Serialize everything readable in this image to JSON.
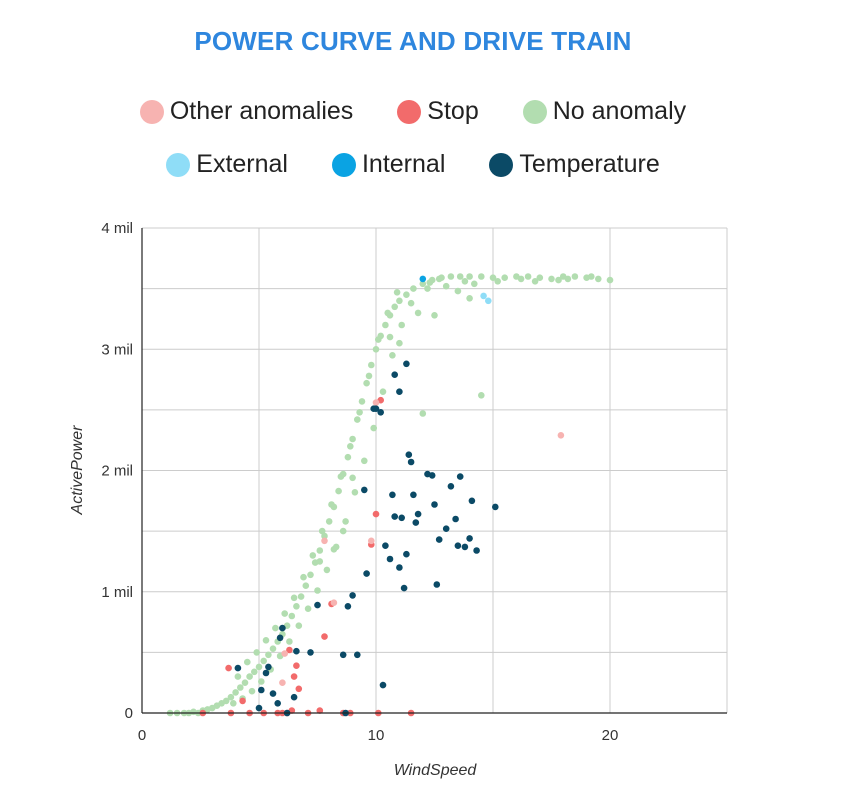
{
  "chart_data": {
    "type": "scatter",
    "title": "POWER CURVE AND DRIVE TRAIN",
    "title_color": "#2E86DE",
    "xlabel": "WindSpeed",
    "ylabel": "ActivePower",
    "xlim": [
      0,
      25
    ],
    "ylim": [
      0,
      4000000
    ],
    "x_ticks": [
      0,
      10,
      20
    ],
    "x_tick_labels": [
      "0",
      "10",
      "20"
    ],
    "y_ticks": [
      0,
      1000000,
      2000000,
      3000000,
      4000000
    ],
    "y_tick_labels": [
      "0",
      "1 mil",
      "2 mil",
      "3 mil",
      "4 mil"
    ],
    "grid": true,
    "legend_position": "top",
    "legend": [
      {
        "key": "other",
        "label": "Other anomalies",
        "color": "#F7B3B1"
      },
      {
        "key": "stop",
        "label": "Stop",
        "color": "#F26B6B"
      },
      {
        "key": "none",
        "label": "No anomaly",
        "color": "#B2DDB0"
      },
      {
        "key": "external",
        "label": "External",
        "color": "#8FDDF7"
      },
      {
        "key": "internal",
        "label": "Internal",
        "color": "#0AA3E3"
      },
      {
        "key": "temperature",
        "label": "Temperature",
        "color": "#0B4A66"
      }
    ],
    "series": [
      {
        "key": "none",
        "name": "No anomaly",
        "color": "#B2DDB0",
        "points": [
          [
            1.2,
            0
          ],
          [
            1.5,
            0
          ],
          [
            1.8,
            0
          ],
          [
            2.0,
            0
          ],
          [
            2.2,
            10000
          ],
          [
            2.4,
            0
          ],
          [
            2.6,
            20000
          ],
          [
            2.8,
            30000
          ],
          [
            3.0,
            40000
          ],
          [
            3.2,
            60000
          ],
          [
            3.4,
            80000
          ],
          [
            3.6,
            100000
          ],
          [
            3.8,
            130000
          ],
          [
            4.0,
            170000
          ],
          [
            4.2,
            210000
          ],
          [
            4.4,
            250000
          ],
          [
            4.6,
            300000
          ],
          [
            4.8,
            340000
          ],
          [
            5.0,
            380000
          ],
          [
            5.2,
            430000
          ],
          [
            5.4,
            480000
          ],
          [
            5.6,
            530000
          ],
          [
            5.8,
            590000
          ],
          [
            6.0,
            650000
          ],
          [
            6.2,
            720000
          ],
          [
            6.4,
            800000
          ],
          [
            6.6,
            880000
          ],
          [
            6.8,
            960000
          ],
          [
            7.0,
            1050000
          ],
          [
            7.2,
            1140000
          ],
          [
            7.4,
            1240000
          ],
          [
            7.6,
            1340000
          ],
          [
            7.8,
            1460000
          ],
          [
            8.0,
            1580000
          ],
          [
            8.2,
            1700000
          ],
          [
            8.4,
            1830000
          ],
          [
            8.6,
            1970000
          ],
          [
            8.8,
            2110000
          ],
          [
            9.0,
            2260000
          ],
          [
            9.2,
            2420000
          ],
          [
            9.4,
            2570000
          ],
          [
            9.6,
            2720000
          ],
          [
            9.8,
            2870000
          ],
          [
            10.0,
            3000000
          ],
          [
            10.2,
            3110000
          ],
          [
            10.4,
            3200000
          ],
          [
            10.6,
            3280000
          ],
          [
            10.8,
            3350000
          ],
          [
            11.0,
            3400000
          ],
          [
            11.3,
            3450000
          ],
          [
            11.6,
            3500000
          ],
          [
            12.0,
            3540000
          ],
          [
            12.4,
            3570000
          ],
          [
            12.8,
            3590000
          ],
          [
            13.2,
            3600000
          ],
          [
            13.6,
            3600000
          ],
          [
            14.0,
            3600000
          ],
          [
            14.5,
            3600000
          ],
          [
            15.0,
            3590000
          ],
          [
            15.5,
            3590000
          ],
          [
            16.0,
            3600000
          ],
          [
            16.5,
            3600000
          ],
          [
            17.0,
            3590000
          ],
          [
            17.5,
            3580000
          ],
          [
            18.0,
            3600000
          ],
          [
            18.5,
            3600000
          ],
          [
            19.0,
            3590000
          ],
          [
            19.5,
            3580000
          ],
          [
            20.0,
            3570000
          ],
          [
            4.1,
            300000
          ],
          [
            4.5,
            420000
          ],
          [
            4.9,
            500000
          ],
          [
            5.3,
            600000
          ],
          [
            5.7,
            700000
          ],
          [
            6.1,
            820000
          ],
          [
            6.5,
            950000
          ],
          [
            6.9,
            1120000
          ],
          [
            7.3,
            1300000
          ],
          [
            7.7,
            1500000
          ],
          [
            8.1,
            1720000
          ],
          [
            8.5,
            1950000
          ],
          [
            8.9,
            2200000
          ],
          [
            9.3,
            2480000
          ],
          [
            9.7,
            2780000
          ],
          [
            10.1,
            3080000
          ],
          [
            10.5,
            3300000
          ],
          [
            10.9,
            3470000
          ],
          [
            3.9,
            80000
          ],
          [
            4.3,
            120000
          ],
          [
            4.7,
            180000
          ],
          [
            5.1,
            260000
          ],
          [
            5.5,
            360000
          ],
          [
            5.9,
            470000
          ],
          [
            6.3,
            590000
          ],
          [
            6.7,
            720000
          ],
          [
            7.1,
            860000
          ],
          [
            7.5,
            1010000
          ],
          [
            7.9,
            1180000
          ],
          [
            8.3,
            1370000
          ],
          [
            8.7,
            1580000
          ],
          [
            9.1,
            1820000
          ],
          [
            9.5,
            2080000
          ],
          [
            9.9,
            2350000
          ],
          [
            10.3,
            2650000
          ],
          [
            10.7,
            2950000
          ],
          [
            11.1,
            3200000
          ],
          [
            12.0,
            2470000
          ],
          [
            14.5,
            2620000
          ],
          [
            11.8,
            3300000
          ],
          [
            12.5,
            3280000
          ],
          [
            13.5,
            3480000
          ],
          [
            14.0,
            3420000
          ],
          [
            13.0,
            3520000
          ],
          [
            12.2,
            3500000
          ],
          [
            11.5,
            3380000
          ],
          [
            9.0,
            1940000
          ],
          [
            8.6,
            1500000
          ],
          [
            8.2,
            1350000
          ],
          [
            7.6,
            1250000
          ],
          [
            10.6,
            3100000
          ],
          [
            11.0,
            3050000
          ],
          [
            12.3,
            3550000
          ],
          [
            12.7,
            3580000
          ],
          [
            13.8,
            3560000
          ],
          [
            14.2,
            3540000
          ],
          [
            15.2,
            3560000
          ],
          [
            16.2,
            3580000
          ],
          [
            16.8,
            3560000
          ],
          [
            17.8,
            3570000
          ],
          [
            18.2,
            3580000
          ],
          [
            19.2,
            3600000
          ]
        ]
      },
      {
        "key": "stop",
        "name": "Stop",
        "color": "#F26B6B",
        "points": [
          [
            2.6,
            0
          ],
          [
            3.7,
            370000
          ],
          [
            3.8,
            0
          ],
          [
            4.3,
            100000
          ],
          [
            4.6,
            0
          ],
          [
            5.2,
            0
          ],
          [
            5.8,
            0
          ],
          [
            6.0,
            0
          ],
          [
            6.2,
            0
          ],
          [
            6.4,
            20000
          ],
          [
            6.5,
            300000
          ],
          [
            6.6,
            390000
          ],
          [
            6.7,
            200000
          ],
          [
            7.1,
            0
          ],
          [
            7.6,
            20000
          ],
          [
            7.8,
            630000
          ],
          [
            8.1,
            900000
          ],
          [
            8.6,
            0
          ],
          [
            8.9,
            0
          ],
          [
            9.8,
            1390000
          ],
          [
            10.0,
            1640000
          ],
          [
            10.1,
            0
          ],
          [
            11.5,
            0
          ],
          [
            10.2,
            2580000
          ],
          [
            6.3,
            520000
          ]
        ]
      },
      {
        "key": "other",
        "name": "Other anomalies",
        "color": "#F7B3B1",
        "points": [
          [
            17.9,
            2290000
          ],
          [
            9.8,
            1420000
          ],
          [
            7.8,
            1420000
          ],
          [
            6.1,
            490000
          ],
          [
            6.0,
            250000
          ],
          [
            8.2,
            910000
          ],
          [
            10.0,
            2560000
          ]
        ]
      },
      {
        "key": "external",
        "name": "External",
        "color": "#8FDDF7",
        "points": [
          [
            14.6,
            3440000
          ],
          [
            14.8,
            3400000
          ]
        ]
      },
      {
        "key": "internal",
        "name": "Internal",
        "color": "#0AA3E3",
        "points": [
          [
            12.0,
            3580000
          ]
        ]
      },
      {
        "key": "temperature",
        "name": "Temperature",
        "color": "#0B4A66",
        "points": [
          [
            4.1,
            370000
          ],
          [
            5.0,
            40000
          ],
          [
            5.1,
            190000
          ],
          [
            5.3,
            330000
          ],
          [
            5.4,
            380000
          ],
          [
            5.6,
            160000
          ],
          [
            5.8,
            80000
          ],
          [
            6.0,
            700000
          ],
          [
            6.2,
            0
          ],
          [
            6.5,
            130000
          ],
          [
            6.6,
            510000
          ],
          [
            7.2,
            500000
          ],
          [
            7.5,
            890000
          ],
          [
            8.6,
            480000
          ],
          [
            8.8,
            880000
          ],
          [
            9.0,
            970000
          ],
          [
            9.2,
            480000
          ],
          [
            9.5,
            1840000
          ],
          [
            9.6,
            1150000
          ],
          [
            10.0,
            2510000
          ],
          [
            10.2,
            2480000
          ],
          [
            10.4,
            1380000
          ],
          [
            10.6,
            1270000
          ],
          [
            10.7,
            1800000
          ],
          [
            10.8,
            1620000
          ],
          [
            11.0,
            1200000
          ],
          [
            11.1,
            1610000
          ],
          [
            11.2,
            1030000
          ],
          [
            11.3,
            1310000
          ],
          [
            11.4,
            2130000
          ],
          [
            11.5,
            2070000
          ],
          [
            11.6,
            1800000
          ],
          [
            11.7,
            1570000
          ],
          [
            11.8,
            1640000
          ],
          [
            12.2,
            1970000
          ],
          [
            12.4,
            1960000
          ],
          [
            12.5,
            1720000
          ],
          [
            12.6,
            1060000
          ],
          [
            12.7,
            1430000
          ],
          [
            13.0,
            1520000
          ],
          [
            13.2,
            1870000
          ],
          [
            13.4,
            1600000
          ],
          [
            13.5,
            1380000
          ],
          [
            13.6,
            1950000
          ],
          [
            13.8,
            1370000
          ],
          [
            14.0,
            1440000
          ],
          [
            14.1,
            1750000
          ],
          [
            14.3,
            1340000
          ],
          [
            15.1,
            1700000
          ],
          [
            11.0,
            2650000
          ],
          [
            11.3,
            2880000
          ],
          [
            10.8,
            2790000
          ],
          [
            10.3,
            230000
          ],
          [
            9.9,
            2510000
          ],
          [
            8.7,
            0
          ],
          [
            5.9,
            620000
          ]
        ]
      }
    ]
  }
}
